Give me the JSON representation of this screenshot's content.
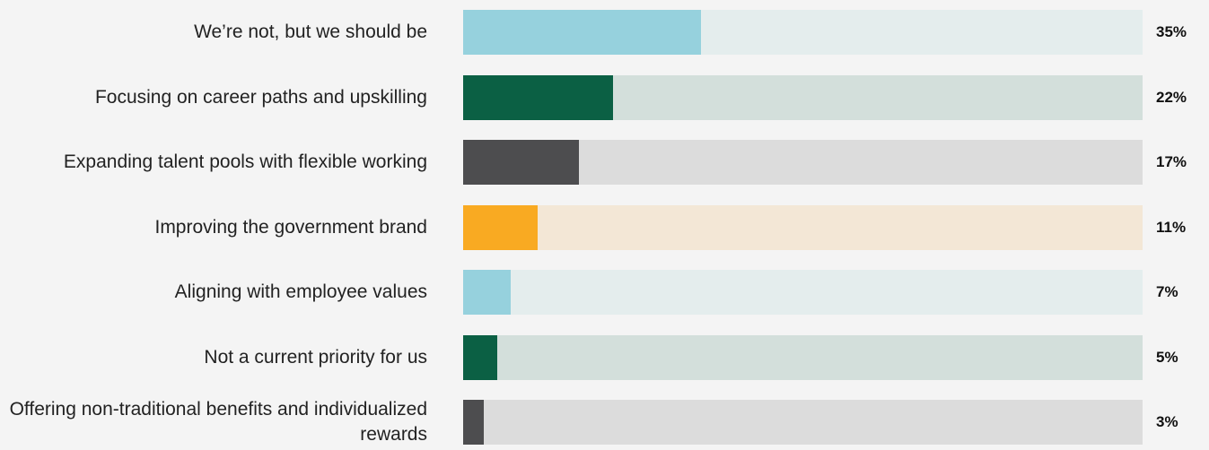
{
  "chart_data": {
    "type": "bar",
    "orientation": "horizontal",
    "categories": [
      "We’re not, but we should be",
      "Focusing on career paths and upskilling",
      "Expanding talent pools with flexible working",
      "Improving the government brand",
      "Aligning with employee values",
      "Not a current priority for us",
      "Offering non-traditional benefits and individualized rewards"
    ],
    "values": [
      35,
      22,
      17,
      11,
      7,
      5,
      3
    ],
    "value_labels": [
      "35%",
      "22%",
      "17%",
      "11%",
      "7%",
      "5%",
      "3%"
    ],
    "xlim": [
      0,
      100
    ],
    "grid": false,
    "legend": "none",
    "colors": {
      "fill": [
        "#96d1dd",
        "#0b6044",
        "#4d4d4f",
        "#f9aa22",
        "#96d1dd",
        "#0b6044",
        "#4d4d4f"
      ],
      "track": [
        "#e4eded",
        "#d3dfdb",
        "#dcdcdc",
        "#f3e7d6",
        "#e4eded",
        "#d3dfdb",
        "#dcdcdc"
      ]
    }
  }
}
